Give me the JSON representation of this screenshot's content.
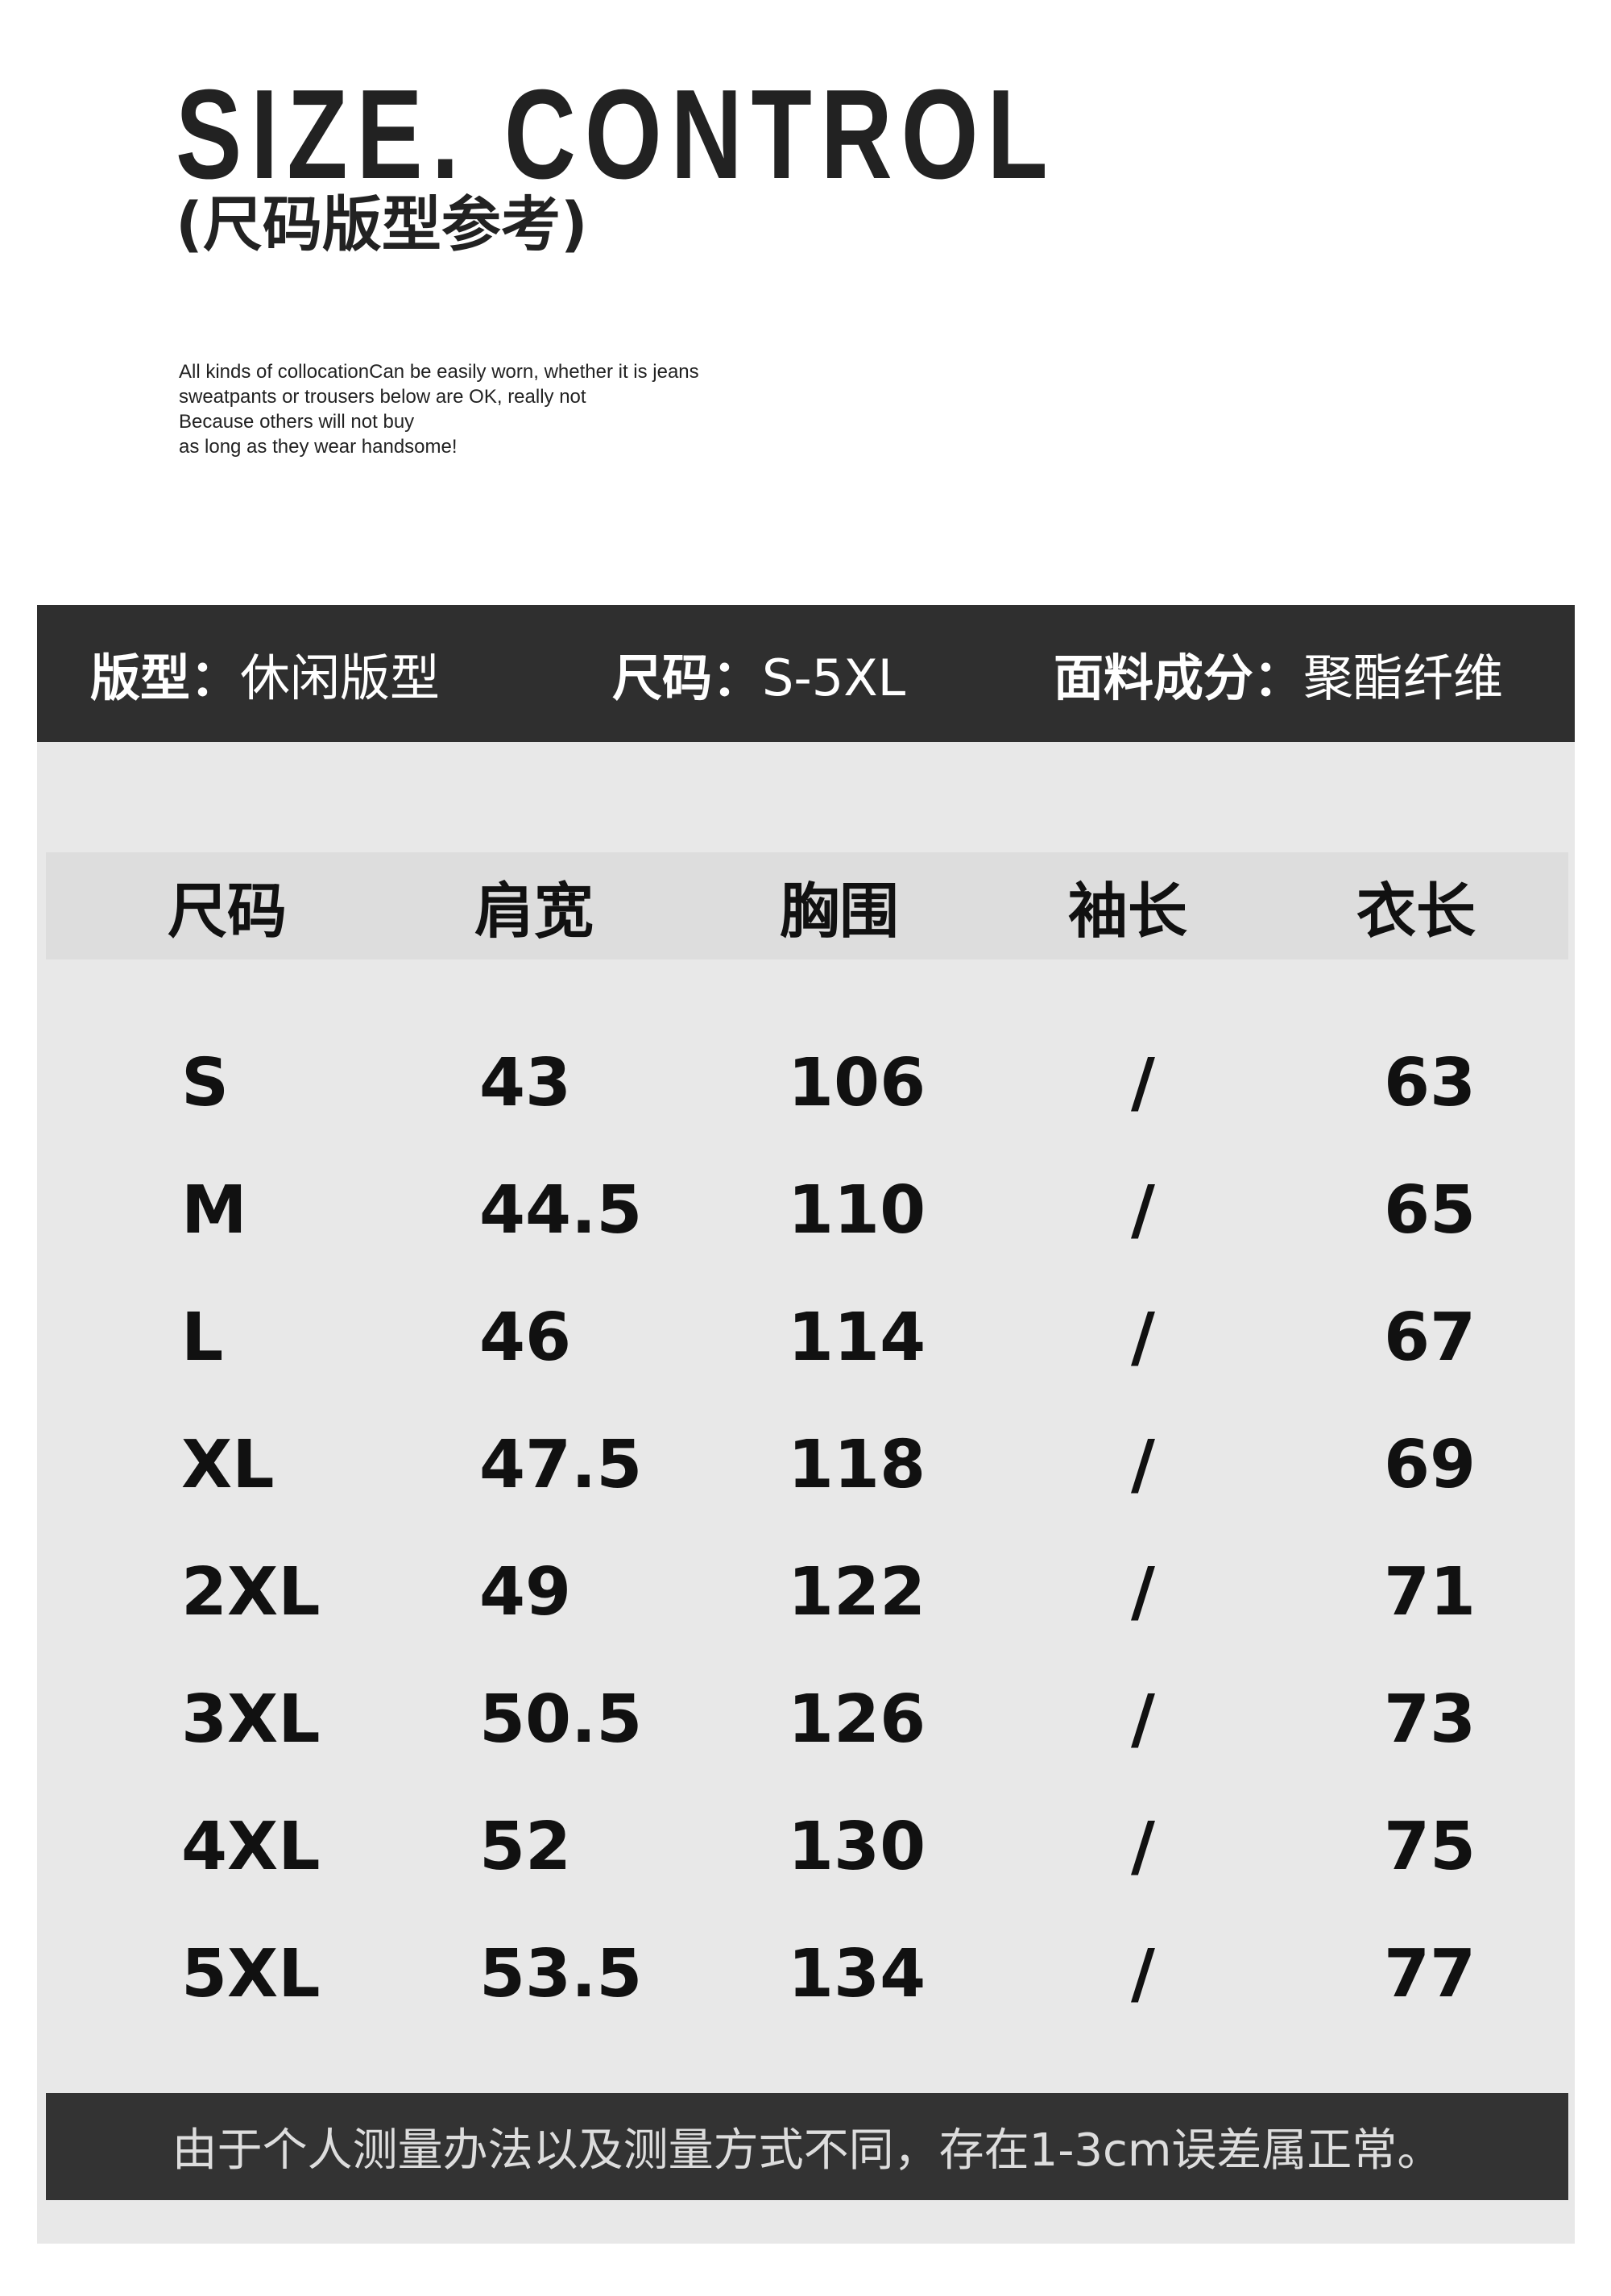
{
  "header": {
    "title": "SIZE. CONTROL",
    "subtitle": "(尺码版型参考)",
    "description": [
      "All kinds of collocationCan be easily worn, whether it is jeans",
      "sweatpants or trousers below are OK, really not",
      "Because others will not buy",
      "as long as they wear handsome!"
    ]
  },
  "info": [
    {
      "label": "版型：",
      "value": "休闲版型"
    },
    {
      "label": "尺码：",
      "value": "S-5XL"
    },
    {
      "label": "面料成分：",
      "value": "聚酯纤维"
    }
  ],
  "table": {
    "columns": [
      "尺码",
      "肩宽",
      "胸围",
      "袖长",
      "衣长"
    ],
    "rows": [
      [
        "S",
        "43",
        "106",
        "/",
        "63"
      ],
      [
        "M",
        "44.5",
        "110",
        "/",
        "65"
      ],
      [
        "L",
        "46",
        "114",
        "/",
        "67"
      ],
      [
        "XL",
        "47.5",
        "118",
        "/",
        "69"
      ],
      [
        "2XL",
        "49",
        "122",
        "/",
        "71"
      ],
      [
        "3XL",
        "50.5",
        "126",
        "/",
        "73"
      ],
      [
        "4XL",
        "52",
        "130",
        "/",
        "75"
      ],
      [
        "5XL",
        "53.5",
        "134",
        "/",
        "77"
      ]
    ]
  },
  "footer": {
    "note": "由于个人测量办法以及测量方式不同，存在1-3cm误差属正常。"
  },
  "colors": {
    "dark_bar": "#2f2f2f",
    "panel": "#e8e8e8",
    "header_row": "#dddddd"
  }
}
